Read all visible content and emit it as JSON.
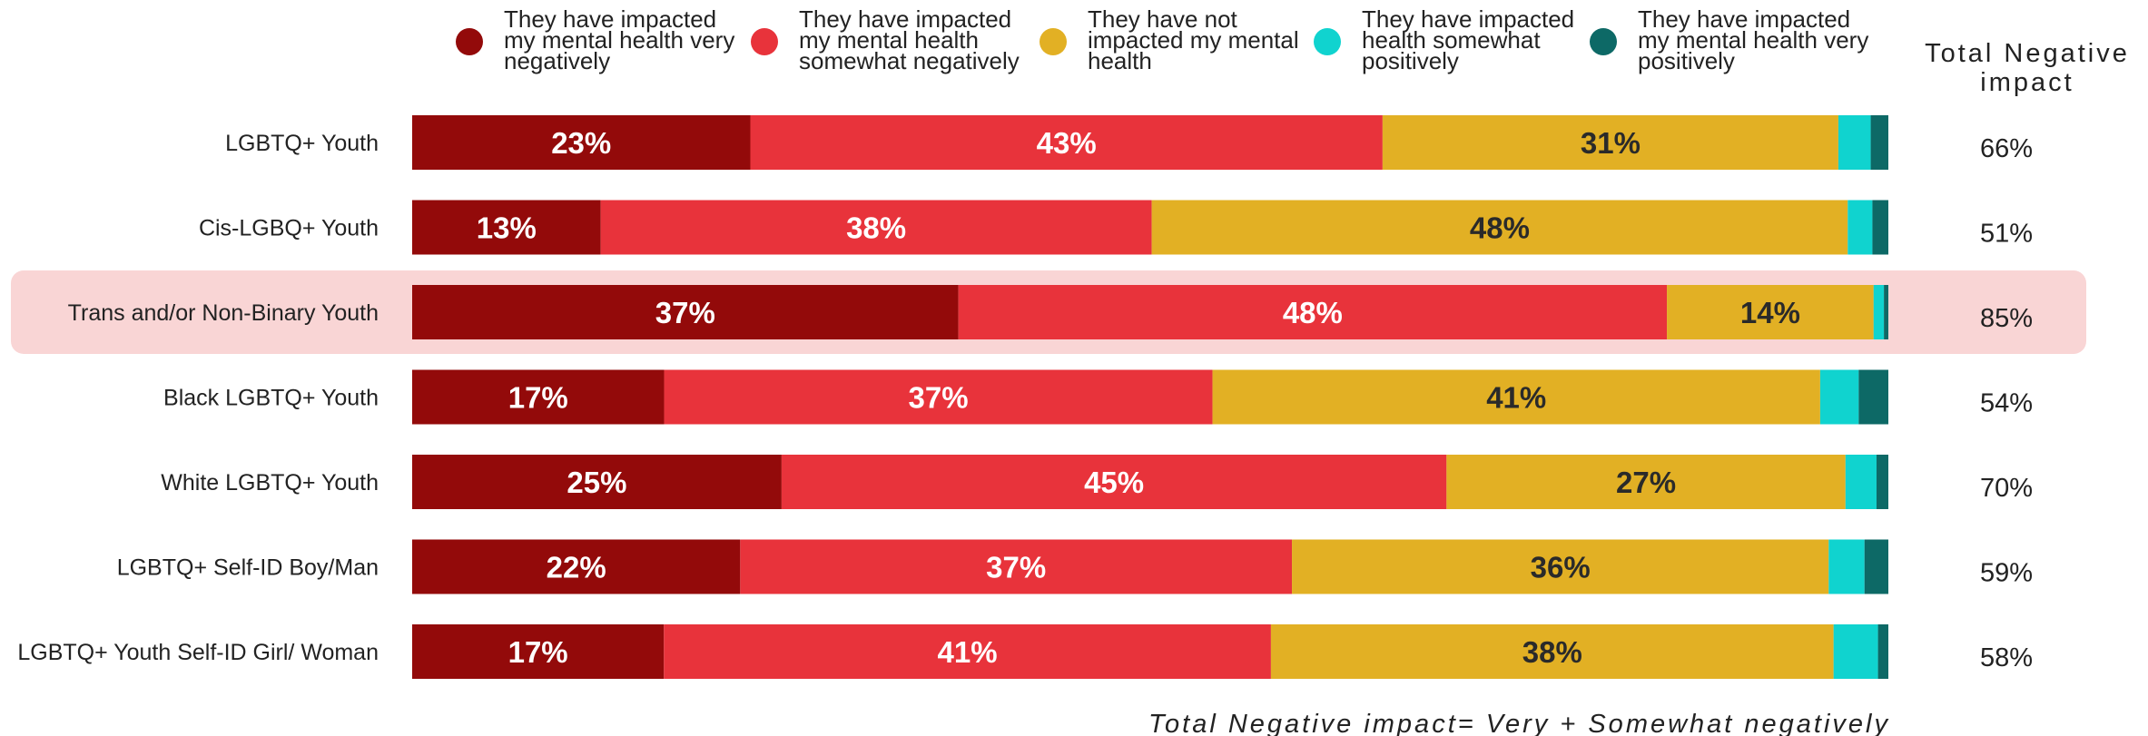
{
  "chart_data": {
    "type": "bar",
    "orientation": "horizontal",
    "stacked": true,
    "normalized": true,
    "categories": [
      "LGBTQ+ Youth",
      "Cis-LGBQ+ Youth",
      "Trans and/or Non-Binary Youth",
      "Black LGBTQ+ Youth",
      "White LGBTQ+ Youth",
      "LGBTQ+ Self-ID Boy/Man",
      "LGBTQ+ Youth Self-ID Girl/ Woman"
    ],
    "highlighted_category": "Trans and/or Non-Binary Youth",
    "series": [
      {
        "name": "They have impacted my mental health very negatively",
        "color": "#930a0a",
        "label_color": "#ffffff",
        "values": [
          23,
          13,
          37,
          17,
          25,
          22,
          17
        ]
      },
      {
        "name": "They have impacted my mental health somewhat negatively",
        "color": "#e8333b",
        "label_color": "#ffffff",
        "values": [
          43,
          38,
          48,
          37,
          45,
          37,
          41
        ]
      },
      {
        "name": "They have not impacted my mental health",
        "color": "#e2b024",
        "label_color": "#2a2a2a",
        "values": [
          31,
          48,
          14,
          41,
          27,
          36,
          38
        ]
      },
      {
        "name": "They have impacted health somewhat positively",
        "color": "#10d3cf",
        "label_color": "#2a2a2a",
        "values": [
          2.2,
          1.7,
          0.7,
          2.6,
          2.1,
          2.4,
          3.0
        ]
      },
      {
        "name": "They have impacted my mental health very positively",
        "color": "#0d6966",
        "label_color": "#ffffff",
        "values": [
          1.2,
          1.1,
          0.3,
          2.0,
          0.8,
          1.6,
          0.7
        ]
      }
    ],
    "legend_lines": [
      [
        "They have impacted",
        "my mental health very",
        "negatively"
      ],
      [
        "They have impacted",
        "my mental health",
        "somewhat negatively"
      ],
      [
        "They have not",
        "impacted my mental",
        "health"
      ],
      [
        "They have impacted",
        "health somewhat",
        "positively"
      ],
      [
        "They have impacted",
        "my mental health very",
        "positively"
      ]
    ],
    "labeled_series_count": 3,
    "total_header_lines": [
      "Total Negative",
      "impact"
    ],
    "totals": [
      "66%",
      "51%",
      "85%",
      "54%",
      "70%",
      "59%",
      "58%"
    ],
    "footnote": "Total Negative impact= Very + Somewhat negatively",
    "legend_position": "top",
    "grid": false
  }
}
